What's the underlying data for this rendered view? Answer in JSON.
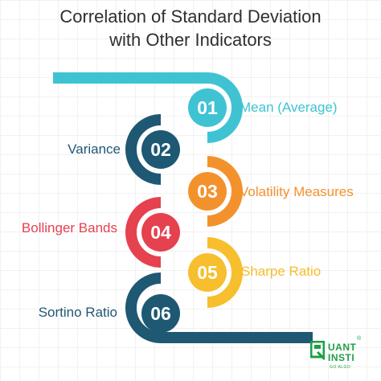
{
  "title": {
    "line1": "Correlation of Standard Deviation",
    "line2": "with Other Indicators"
  },
  "steps": [
    {
      "number": "01",
      "label": "Mean (Average)",
      "color": "#3fc3d3"
    },
    {
      "number": "02",
      "label": "Variance",
      "color": "#1e5873"
    },
    {
      "number": "03",
      "label": "Volatility Measures",
      "color": "#f3922d"
    },
    {
      "number": "04",
      "label": "Bollinger Bands",
      "color": "#e5414f"
    },
    {
      "number": "05",
      "label": "Sharpe Ratio",
      "color": "#f7be2d"
    },
    {
      "number": "06",
      "label": "Sortino Ratio",
      "color": "#1e5873"
    }
  ],
  "logo": {
    "line1": "UANT",
    "line2": "INSTI",
    "tagline": "GO ALGO",
    "mark": "®",
    "color": "#1f9f47"
  }
}
